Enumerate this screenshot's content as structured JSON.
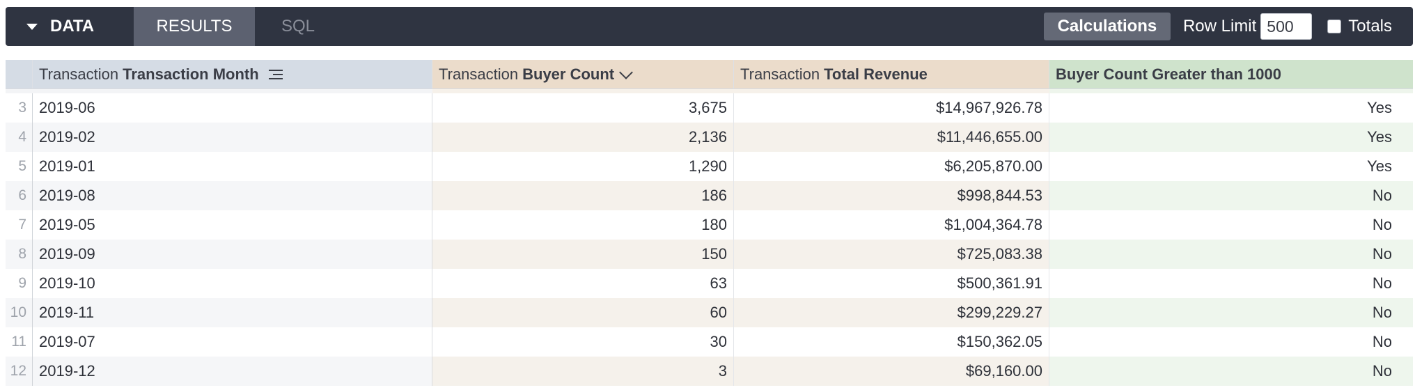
{
  "toolbar": {
    "data_tab": "DATA",
    "results_tab": "RESULTS",
    "sql_tab": "SQL",
    "calculations_button": "Calculations",
    "row_limit_label": "Row Limit",
    "row_limit_value": "500",
    "totals_label": "Totals",
    "totals_checked": false
  },
  "table": {
    "columns": [
      {
        "prefix": "Transaction",
        "name": "Transaction Month",
        "icon": "sort-lines-icon"
      },
      {
        "prefix": "Transaction",
        "name": "Buyer Count",
        "icon": "chevron-down-icon"
      },
      {
        "prefix": "Transaction",
        "name": "Total Revenue"
      },
      {
        "prefix": "",
        "name": "Buyer Count Greater than 1000"
      }
    ],
    "rows": [
      {
        "index": "3",
        "month": "2019-06",
        "buyer_count": "3,675",
        "revenue": "$14,967,926.78",
        "flag": "Yes"
      },
      {
        "index": "4",
        "month": "2019-02",
        "buyer_count": "2,136",
        "revenue": "$11,446,655.00",
        "flag": "Yes"
      },
      {
        "index": "5",
        "month": "2019-01",
        "buyer_count": "1,290",
        "revenue": "$6,205,870.00",
        "flag": "Yes"
      },
      {
        "index": "6",
        "month": "2019-08",
        "buyer_count": "186",
        "revenue": "$998,844.53",
        "flag": "No"
      },
      {
        "index": "7",
        "month": "2019-05",
        "buyer_count": "180",
        "revenue": "$1,004,364.78",
        "flag": "No"
      },
      {
        "index": "8",
        "month": "2019-09",
        "buyer_count": "150",
        "revenue": "$725,083.38",
        "flag": "No"
      },
      {
        "index": "9",
        "month": "2019-10",
        "buyer_count": "63",
        "revenue": "$500,361.91",
        "flag": "No"
      },
      {
        "index": "10",
        "month": "2019-11",
        "buyer_count": "60",
        "revenue": "$299,229.27",
        "flag": "No"
      },
      {
        "index": "11",
        "month": "2019-07",
        "buyer_count": "30",
        "revenue": "$150,362.05",
        "flag": "No"
      },
      {
        "index": "12",
        "month": "2019-12",
        "buyer_count": "3",
        "revenue": "$69,160.00",
        "flag": "No"
      }
    ]
  },
  "colors": {
    "toolbar_bg": "#2f3441",
    "dimension_header": "#d5dce5",
    "measure_header": "#ebdccb",
    "calculation_header": "#cfe3cc"
  }
}
